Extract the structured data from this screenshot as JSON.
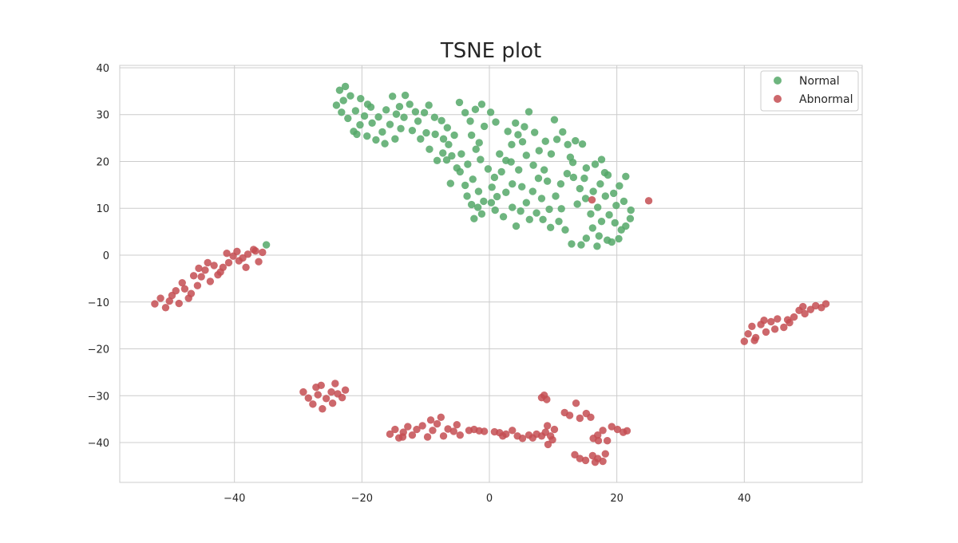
{
  "chart_data": {
    "type": "scatter",
    "title": "TSNE plot",
    "xlabel": "",
    "ylabel": "",
    "xlim": [
      -58,
      58.5
    ],
    "ylim": [
      -48.5,
      40.5
    ],
    "xticks": [
      -40,
      -20,
      0,
      20,
      40
    ],
    "yticks": [
      40,
      30,
      20,
      10,
      0,
      -10,
      -20,
      -30,
      -40
    ],
    "grid": true,
    "legend_position": "top-right",
    "series": [
      {
        "name": "Normal",
        "color": "#55a868",
        "points": [
          [
            -23.5,
            35.2
          ],
          [
            -22.6,
            36.0
          ],
          [
            -21.8,
            34.0
          ],
          [
            -22.9,
            33.0
          ],
          [
            -24.0,
            32.0
          ],
          [
            -23.2,
            30.5
          ],
          [
            -22.2,
            29.2
          ],
          [
            -21.0,
            30.8
          ],
          [
            -20.2,
            33.4
          ],
          [
            -19.1,
            32.2
          ],
          [
            -20.3,
            27.8
          ],
          [
            -21.3,
            26.4
          ],
          [
            -19.2,
            25.4
          ],
          [
            -18.4,
            28.2
          ],
          [
            -17.4,
            29.5
          ],
          [
            -17.8,
            24.6
          ],
          [
            -16.4,
            23.8
          ],
          [
            -16.8,
            26.3
          ],
          [
            -15.6,
            27.9
          ],
          [
            -14.6,
            30.1
          ],
          [
            -15.2,
            33.9
          ],
          [
            -14.1,
            31.7
          ],
          [
            -13.2,
            34.1
          ],
          [
            -12.5,
            32.2
          ],
          [
            -13.4,
            29.4
          ],
          [
            -12.1,
            26.6
          ],
          [
            -11.2,
            28.6
          ],
          [
            -10.2,
            30.4
          ],
          [
            -9.5,
            32.0
          ],
          [
            -10.8,
            24.8
          ],
          [
            -9.4,
            22.6
          ],
          [
            -8.5,
            25.8
          ],
          [
            -7.5,
            28.7
          ],
          [
            -6.6,
            27.2
          ],
          [
            -8.2,
            20.2
          ],
          [
            -7.3,
            21.8
          ],
          [
            -6.4,
            23.6
          ],
          [
            -5.5,
            25.6
          ],
          [
            -4.7,
            32.6
          ],
          [
            -3.8,
            30.4
          ],
          [
            -3.0,
            28.6
          ],
          [
            -2.2,
            31.1
          ],
          [
            -1.2,
            32.2
          ],
          [
            -2.8,
            25.6
          ],
          [
            -1.6,
            24.0
          ],
          [
            -0.8,
            27.5
          ],
          [
            0.2,
            30.5
          ],
          [
            1.0,
            28.4
          ],
          [
            -4.4,
            21.6
          ],
          [
            -3.4,
            19.4
          ],
          [
            -4.6,
            17.8
          ],
          [
            -2.6,
            16.2
          ],
          [
            -1.7,
            13.6
          ],
          [
            -0.9,
            11.5
          ],
          [
            -2.8,
            10.8
          ],
          [
            -3.5,
            12.6
          ],
          [
            -2.4,
            7.8
          ],
          [
            -1.2,
            8.8
          ],
          [
            0.3,
            11.2
          ],
          [
            1.2,
            12.5
          ],
          [
            0.4,
            14.5
          ],
          [
            1.9,
            17.8
          ],
          [
            2.6,
            20.2
          ],
          [
            3.5,
            23.6
          ],
          [
            4.5,
            25.7
          ],
          [
            5.5,
            27.4
          ],
          [
            6.2,
            30.6
          ],
          [
            7.1,
            26.2
          ],
          [
            7.8,
            22.3
          ],
          [
            5.8,
            21.3
          ],
          [
            4.6,
            18.2
          ],
          [
            3.6,
            15.2
          ],
          [
            2.6,
            13.4
          ],
          [
            3.6,
            10.2
          ],
          [
            4.9,
            9.4
          ],
          [
            5.8,
            11.2
          ],
          [
            6.8,
            13.6
          ],
          [
            7.7,
            16.4
          ],
          [
            8.6,
            18.2
          ],
          [
            9.7,
            21.6
          ],
          [
            10.6,
            24.7
          ],
          [
            11.5,
            26.3
          ],
          [
            12.3,
            23.6
          ],
          [
            13.5,
            24.4
          ],
          [
            14.6,
            23.7
          ],
          [
            13.1,
            19.8
          ],
          [
            12.2,
            17.4
          ],
          [
            11.2,
            15.2
          ],
          [
            10.4,
            12.6
          ],
          [
            9.4,
            9.8
          ],
          [
            8.4,
            7.6
          ],
          [
            7.4,
            9.0
          ],
          [
            6.3,
            7.6
          ],
          [
            4.2,
            6.2
          ],
          [
            9.6,
            5.9
          ],
          [
            10.9,
            7.2
          ],
          [
            11.9,
            5.4
          ],
          [
            12.9,
            2.4
          ],
          [
            14.4,
            2.2
          ],
          [
            15.2,
            3.6
          ],
          [
            16.2,
            5.8
          ],
          [
            17.2,
            4.1
          ],
          [
            18.5,
            3.2
          ],
          [
            19.2,
            2.8
          ],
          [
            17.6,
            7.2
          ],
          [
            18.8,
            8.6
          ],
          [
            19.9,
            10.6
          ],
          [
            21.1,
            11.5
          ],
          [
            22.2,
            9.6
          ],
          [
            22.1,
            7.8
          ],
          [
            21.4,
            6.2
          ],
          [
            20.7,
            5.4
          ],
          [
            19.5,
            13.2
          ],
          [
            20.4,
            14.8
          ],
          [
            21.4,
            16.8
          ],
          [
            18.6,
            17.1
          ],
          [
            17.4,
            15.2
          ],
          [
            16.3,
            13.6
          ],
          [
            15.1,
            12.1
          ],
          [
            14.2,
            14.2
          ],
          [
            13.2,
            16.6
          ],
          [
            15.2,
            18.6
          ],
          [
            16.6,
            19.4
          ],
          [
            17.6,
            20.4
          ],
          [
            18.1,
            17.6
          ],
          [
            -18.6,
            31.6
          ],
          [
            -16.2,
            31.0
          ],
          [
            -11.6,
            30.6
          ],
          [
            -8.6,
            29.4
          ],
          [
            -7.2,
            24.8
          ],
          [
            -5.9,
            21.2
          ],
          [
            -1.4,
            20.4
          ],
          [
            0.8,
            16.6
          ],
          [
            1.6,
            21.6
          ],
          [
            2.9,
            26.4
          ],
          [
            4.1,
            28.2
          ],
          [
            8.8,
            24.3
          ],
          [
            10.2,
            28.9
          ],
          [
            12.7,
            20.9
          ],
          [
            14.9,
            16.4
          ],
          [
            17.0,
            10.2
          ],
          [
            18.2,
            12.6
          ],
          [
            19.7,
            6.9
          ],
          [
            11.3,
            9.9
          ],
          [
            8.2,
            12.1
          ],
          [
            5.1,
            14.6
          ],
          [
            3.4,
            19.9
          ],
          [
            -0.2,
            18.4
          ],
          [
            -2.1,
            22.6
          ],
          [
            -5.1,
            18.6
          ],
          [
            -6.7,
            20.3
          ],
          [
            -9.9,
            26.1
          ],
          [
            -13.9,
            27.0
          ],
          [
            -19.6,
            29.7
          ],
          [
            -20.8,
            25.8
          ],
          [
            -14.8,
            24.8
          ],
          [
            -6.1,
            15.3
          ],
          [
            -3.8,
            14.9
          ],
          [
            -1.8,
            10.2
          ],
          [
            0.9,
            9.6
          ],
          [
            2.2,
            8.2
          ],
          [
            5.2,
            24.2
          ],
          [
            6.9,
            19.2
          ],
          [
            9.1,
            15.8
          ],
          [
            13.8,
            10.9
          ],
          [
            15.9,
            8.8
          ],
          [
            16.9,
            1.9
          ],
          [
            20.3,
            3.5
          ],
          [
            -35.0,
            2.2
          ]
        ]
      },
      {
        "name": "Abnormal",
        "color": "#c44e52",
        "points": [
          [
            -52.5,
            -10.4
          ],
          [
            -51.6,
            -9.2
          ],
          [
            -50.8,
            -11.2
          ],
          [
            -49.8,
            -8.6
          ],
          [
            -48.7,
            -10.3
          ],
          [
            -47.8,
            -7.2
          ],
          [
            -46.8,
            -8.2
          ],
          [
            -45.8,
            -6.5
          ],
          [
            -45.2,
            -4.6
          ],
          [
            -44.6,
            -3.2
          ],
          [
            -45.6,
            -2.8
          ],
          [
            -43.8,
            -5.6
          ],
          [
            -42.6,
            -4.2
          ],
          [
            -41.8,
            -2.6
          ],
          [
            -40.9,
            -1.6
          ],
          [
            -40.2,
            -0.2
          ],
          [
            -39.6,
            0.8
          ],
          [
            -38.7,
            -0.6
          ],
          [
            -37.9,
            0.2
          ],
          [
            -37.0,
            1.2
          ],
          [
            -36.2,
            -1.4
          ],
          [
            -35.6,
            0.6
          ],
          [
            -41.2,
            0.4
          ],
          [
            -42.2,
            -3.6
          ],
          [
            -44.2,
            -1.6
          ],
          [
            -46.4,
            -4.4
          ],
          [
            -49.2,
            -7.6
          ],
          [
            -50.2,
            -9.8
          ],
          [
            -47.2,
            -9.2
          ],
          [
            -43.2,
            -2.2
          ],
          [
            -39.3,
            -1.2
          ],
          [
            -38.2,
            -2.6
          ],
          [
            -36.7,
            0.9
          ],
          [
            -48.2,
            -5.9
          ],
          [
            -29.2,
            -29.2
          ],
          [
            -28.4,
            -30.5
          ],
          [
            -27.7,
            -31.8
          ],
          [
            -26.9,
            -29.8
          ],
          [
            -26.2,
            -32.8
          ],
          [
            -25.6,
            -30.6
          ],
          [
            -24.8,
            -29.2
          ],
          [
            -24.2,
            -27.4
          ],
          [
            -23.8,
            -29.6
          ],
          [
            -23.1,
            -30.4
          ],
          [
            -22.6,
            -28.8
          ],
          [
            -24.6,
            -31.6
          ],
          [
            -27.2,
            -28.2
          ],
          [
            -26.4,
            -27.8
          ],
          [
            -15.6,
            -38.2
          ],
          [
            -14.8,
            -37.2
          ],
          [
            -14.2,
            -39.0
          ],
          [
            -13.5,
            -37.8
          ],
          [
            -12.8,
            -36.6
          ],
          [
            -12.1,
            -38.4
          ],
          [
            -11.4,
            -37.2
          ],
          [
            -10.5,
            -36.4
          ],
          [
            -9.7,
            -38.8
          ],
          [
            -8.9,
            -37.4
          ],
          [
            -8.2,
            -36.0
          ],
          [
            -7.6,
            -34.6
          ],
          [
            -7.2,
            -38.6
          ],
          [
            -6.5,
            -37.1
          ],
          [
            -5.6,
            -37.6
          ],
          [
            -4.6,
            -38.4
          ],
          [
            -3.2,
            -37.4
          ],
          [
            -2.4,
            -37.2
          ],
          [
            -1.6,
            -37.5
          ],
          [
            -0.8,
            -37.6
          ],
          [
            0.8,
            -37.7
          ],
          [
            1.6,
            -37.9
          ],
          [
            2.6,
            -38.2
          ],
          [
            3.6,
            -37.4
          ],
          [
            4.4,
            -38.6
          ],
          [
            5.2,
            -39.1
          ],
          [
            6.2,
            -38.4
          ],
          [
            7.4,
            -38.2
          ],
          [
            8.2,
            -38.6
          ],
          [
            8.8,
            -37.8
          ],
          [
            9.2,
            -40.4
          ],
          [
            9.9,
            -39.4
          ],
          [
            10.2,
            -37.2
          ],
          [
            9.1,
            -36.4
          ],
          [
            8.2,
            -30.4
          ],
          [
            9.0,
            -30.8
          ],
          [
            8.6,
            -29.9
          ],
          [
            11.8,
            -33.6
          ],
          [
            12.6,
            -34.2
          ],
          [
            13.6,
            -31.6
          ],
          [
            14.2,
            -34.8
          ],
          [
            15.2,
            -33.8
          ],
          [
            15.9,
            -34.6
          ],
          [
            16.3,
            -39.1
          ],
          [
            17.0,
            -38.4
          ],
          [
            17.8,
            -37.4
          ],
          [
            18.5,
            -39.6
          ],
          [
            19.2,
            -36.6
          ],
          [
            20.1,
            -37.2
          ],
          [
            21.0,
            -37.8
          ],
          [
            21.6,
            -37.5
          ],
          [
            13.4,
            -42.6
          ],
          [
            14.2,
            -43.4
          ],
          [
            15.1,
            -43.8
          ],
          [
            16.2,
            -42.8
          ],
          [
            17.0,
            -43.4
          ],
          [
            17.8,
            -44.0
          ],
          [
            18.2,
            -42.4
          ],
          [
            16.6,
            -44.2
          ],
          [
            -13.6,
            -38.8
          ],
          [
            -9.2,
            -35.2
          ],
          [
            -5.1,
            -36.2
          ],
          [
            2.1,
            -38.6
          ],
          [
            6.8,
            -39.0
          ],
          [
            9.6,
            -38.6
          ],
          [
            17.1,
            -39.6
          ],
          [
            40.0,
            -18.4
          ],
          [
            40.6,
            -16.8
          ],
          [
            41.2,
            -15.2
          ],
          [
            41.8,
            -17.6
          ],
          [
            42.6,
            -14.8
          ],
          [
            43.4,
            -16.4
          ],
          [
            44.2,
            -14.2
          ],
          [
            45.2,
            -13.6
          ],
          [
            46.2,
            -15.4
          ],
          [
            47.1,
            -14.4
          ],
          [
            47.8,
            -13.2
          ],
          [
            48.6,
            -11.8
          ],
          [
            49.5,
            -12.5
          ],
          [
            50.4,
            -11.6
          ],
          [
            51.2,
            -10.8
          ],
          [
            52.1,
            -11.2
          ],
          [
            52.8,
            -10.4
          ],
          [
            44.8,
            -15.8
          ],
          [
            46.8,
            -13.8
          ],
          [
            49.2,
            -11.0
          ],
          [
            41.6,
            -18.2
          ],
          [
            43.1,
            -13.9
          ],
          [
            16.1,
            11.8
          ],
          [
            25.0,
            11.6
          ]
        ]
      }
    ]
  }
}
